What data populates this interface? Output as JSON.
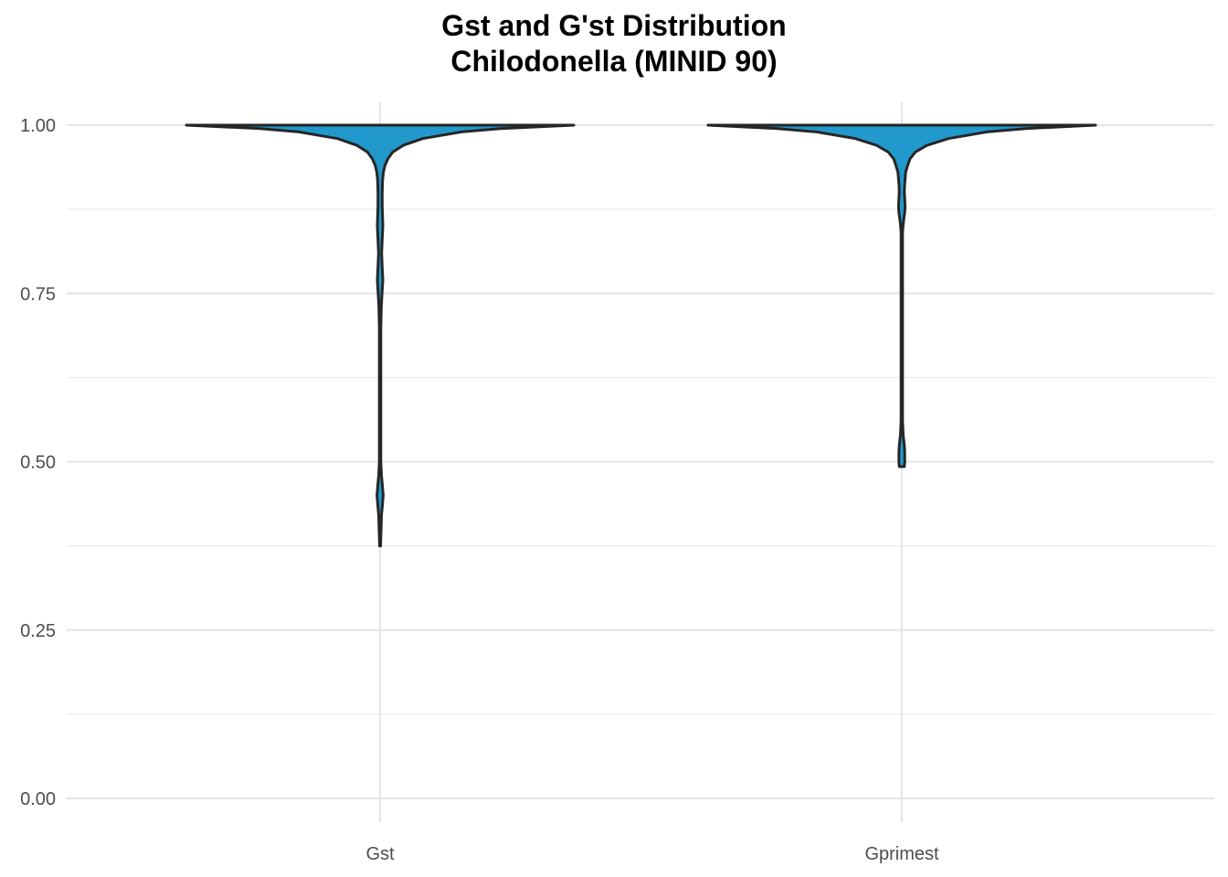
{
  "chart_data": {
    "type": "violin",
    "title": "Gst and G'st Distribution",
    "subtitle": "Chilodonella (MINID 90)",
    "xlabel": "",
    "ylabel": "",
    "categories": [
      "Gst",
      "Gprimest"
    ],
    "ylim": [
      0,
      1.05
    ],
    "yticks": [
      "0.00",
      "0.25",
      "0.50",
      "0.75",
      "1.00"
    ],
    "grid": true,
    "legend": "none",
    "fill_color": "#2299cc",
    "outline_color": "#262626",
    "series": [
      {
        "category": "Gst",
        "density": [
          [
            1.0,
            1.0
          ],
          [
            0.995,
            0.62
          ],
          [
            0.99,
            0.42
          ],
          [
            0.98,
            0.22
          ],
          [
            0.97,
            0.12
          ],
          [
            0.96,
            0.065
          ],
          [
            0.95,
            0.04
          ],
          [
            0.94,
            0.025
          ],
          [
            0.93,
            0.017
          ],
          [
            0.92,
            0.013
          ],
          [
            0.91,
            0.012
          ],
          [
            0.9,
            0.011
          ],
          [
            0.88,
            0.011
          ],
          [
            0.86,
            0.013
          ],
          [
            0.85,
            0.014
          ],
          [
            0.83,
            0.011
          ],
          [
            0.81,
            0.008
          ],
          [
            0.79,
            0.011
          ],
          [
            0.77,
            0.014
          ],
          [
            0.75,
            0.01
          ],
          [
            0.73,
            0.006
          ],
          [
            0.7,
            0.004
          ],
          [
            0.65,
            0.004
          ],
          [
            0.6,
            0.004
          ],
          [
            0.55,
            0.004
          ],
          [
            0.5,
            0.004
          ],
          [
            0.48,
            0.007
          ],
          [
            0.465,
            0.012
          ],
          [
            0.45,
            0.016
          ],
          [
            0.435,
            0.012
          ],
          [
            0.42,
            0.007
          ],
          [
            0.4,
            0.005
          ],
          [
            0.38,
            0.003
          ],
          [
            0.375,
            0.003
          ]
        ]
      },
      {
        "category": "Gprimest",
        "density": [
          [
            1.0,
            1.0
          ],
          [
            0.995,
            0.64
          ],
          [
            0.99,
            0.44
          ],
          [
            0.98,
            0.24
          ],
          [
            0.97,
            0.13
          ],
          [
            0.96,
            0.07
          ],
          [
            0.95,
            0.042
          ],
          [
            0.94,
            0.03
          ],
          [
            0.93,
            0.02
          ],
          [
            0.91,
            0.014
          ],
          [
            0.9,
            0.013
          ],
          [
            0.89,
            0.015
          ],
          [
            0.88,
            0.017
          ],
          [
            0.87,
            0.015
          ],
          [
            0.86,
            0.01
          ],
          [
            0.85,
            0.006
          ],
          [
            0.84,
            0.004
          ],
          [
            0.8,
            0.004
          ],
          [
            0.75,
            0.004
          ],
          [
            0.7,
            0.004
          ],
          [
            0.65,
            0.004
          ],
          [
            0.6,
            0.004
          ],
          [
            0.56,
            0.004
          ],
          [
            0.54,
            0.007
          ],
          [
            0.53,
            0.011
          ],
          [
            0.52,
            0.014
          ],
          [
            0.51,
            0.015
          ],
          [
            0.5,
            0.015
          ],
          [
            0.493,
            0.013
          ]
        ]
      }
    ]
  }
}
